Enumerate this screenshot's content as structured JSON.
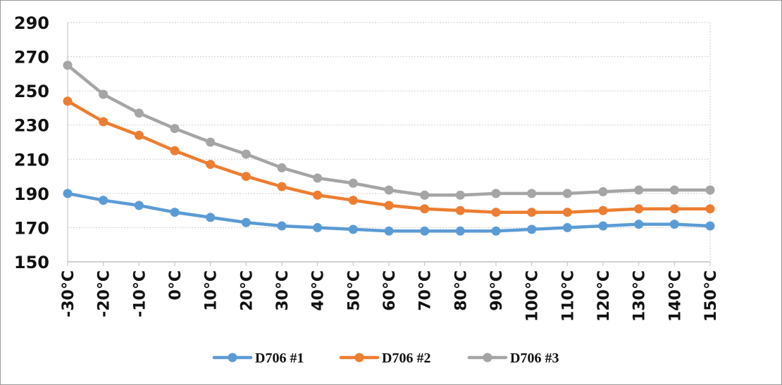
{
  "chart_data": {
    "type": "line",
    "categories": [
      "-30°C",
      "-20°C",
      "-10°C",
      "0°C",
      "10°C",
      "20°C",
      "30°C",
      "40°C",
      "50°C",
      "60°C",
      "70°C",
      "80°C",
      "90°C",
      "100°C",
      "110°C",
      "120°C",
      "130°C",
      "140°C",
      "150°C"
    ],
    "ylim": [
      150,
      290
    ],
    "yticks": [
      150,
      170,
      190,
      210,
      230,
      250,
      270,
      290
    ],
    "grid": true,
    "legend_position": "bottom",
    "series": [
      {
        "name": "D706 #1",
        "color": "#5B9BD5",
        "values": [
          190,
          186,
          183,
          179,
          176,
          173,
          171,
          170,
          169,
          168,
          168,
          168,
          168,
          169,
          170,
          171,
          172,
          172,
          171
        ]
      },
      {
        "name": "D706 #2",
        "color": "#ED7D31",
        "values": [
          244,
          232,
          224,
          215,
          207,
          200,
          194,
          189,
          186,
          183,
          181,
          180,
          179,
          179,
          179,
          180,
          181,
          181,
          181
        ]
      },
      {
        "name": "D706 #3",
        "color": "#A5A5A5",
        "values": [
          265,
          248,
          237,
          228,
          220,
          213,
          205,
          199,
          196,
          192,
          189,
          189,
          190,
          190,
          190,
          191,
          192,
          192,
          192
        ]
      }
    ]
  }
}
